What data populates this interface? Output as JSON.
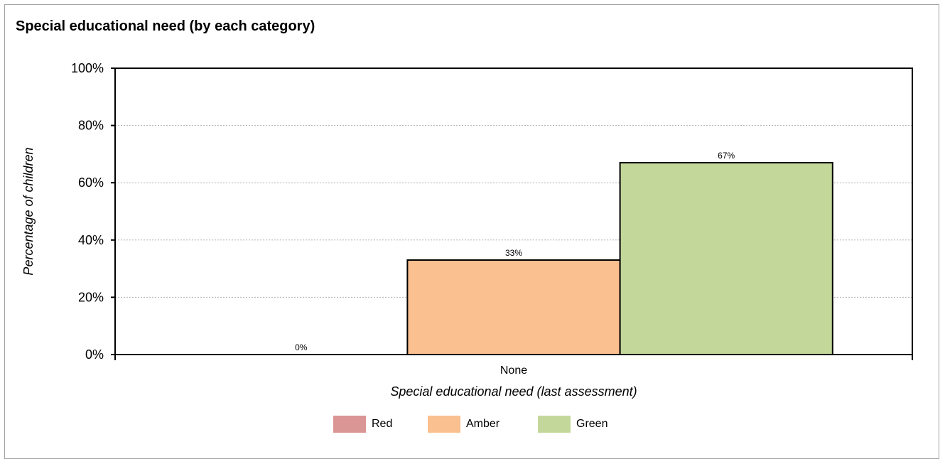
{
  "chart_data": {
    "type": "bar",
    "title": "Special educational need (by each category)",
    "xlabel": "Special educational need (last assessment)",
    "ylabel": "Percentage of children",
    "categories": [
      "None"
    ],
    "series": [
      {
        "name": "Red",
        "values": [
          0
        ],
        "color": "#da9694",
        "data_label": "0%"
      },
      {
        "name": "Amber",
        "values": [
          33
        ],
        "color": "#fac090",
        "data_label": "33%"
      },
      {
        "name": "Green",
        "values": [
          67
        ],
        "color": "#c4d79b",
        "data_label": "67%"
      }
    ],
    "ylim": [
      0,
      100
    ],
    "yticks": [
      0,
      20,
      40,
      60,
      80,
      100
    ],
    "ytick_labels": [
      "0%",
      "20%",
      "40%",
      "60%",
      "80%",
      "100%"
    ],
    "grid": true,
    "legend": "bottom"
  }
}
